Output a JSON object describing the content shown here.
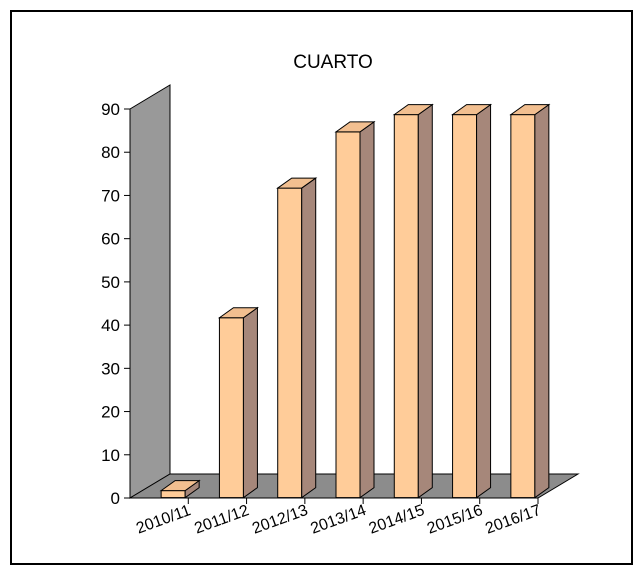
{
  "chart_data": {
    "type": "bar",
    "title": "CUARTO",
    "xlabel": "",
    "ylabel": "",
    "categories": [
      "2010/11",
      "2011/12",
      "2012/13",
      "2013/14",
      "2014/15",
      "2015/16",
      "2016/17"
    ],
    "values": [
      3,
      43,
      73,
      86,
      90,
      90,
      90
    ],
    "ylim": [
      0,
      90
    ],
    "yticks": [
      "0",
      "10",
      "20",
      "30",
      "40",
      "50",
      "60",
      "70",
      "80",
      "90"
    ],
    "grid": false,
    "legend": "none",
    "style": "3d-column",
    "colors": {
      "bar_front": "#FFCC99",
      "bar_side": "#A6877A",
      "bar_top": "#F2BF90",
      "wall": "#999999",
      "floor": "#8C8C8C"
    }
  }
}
